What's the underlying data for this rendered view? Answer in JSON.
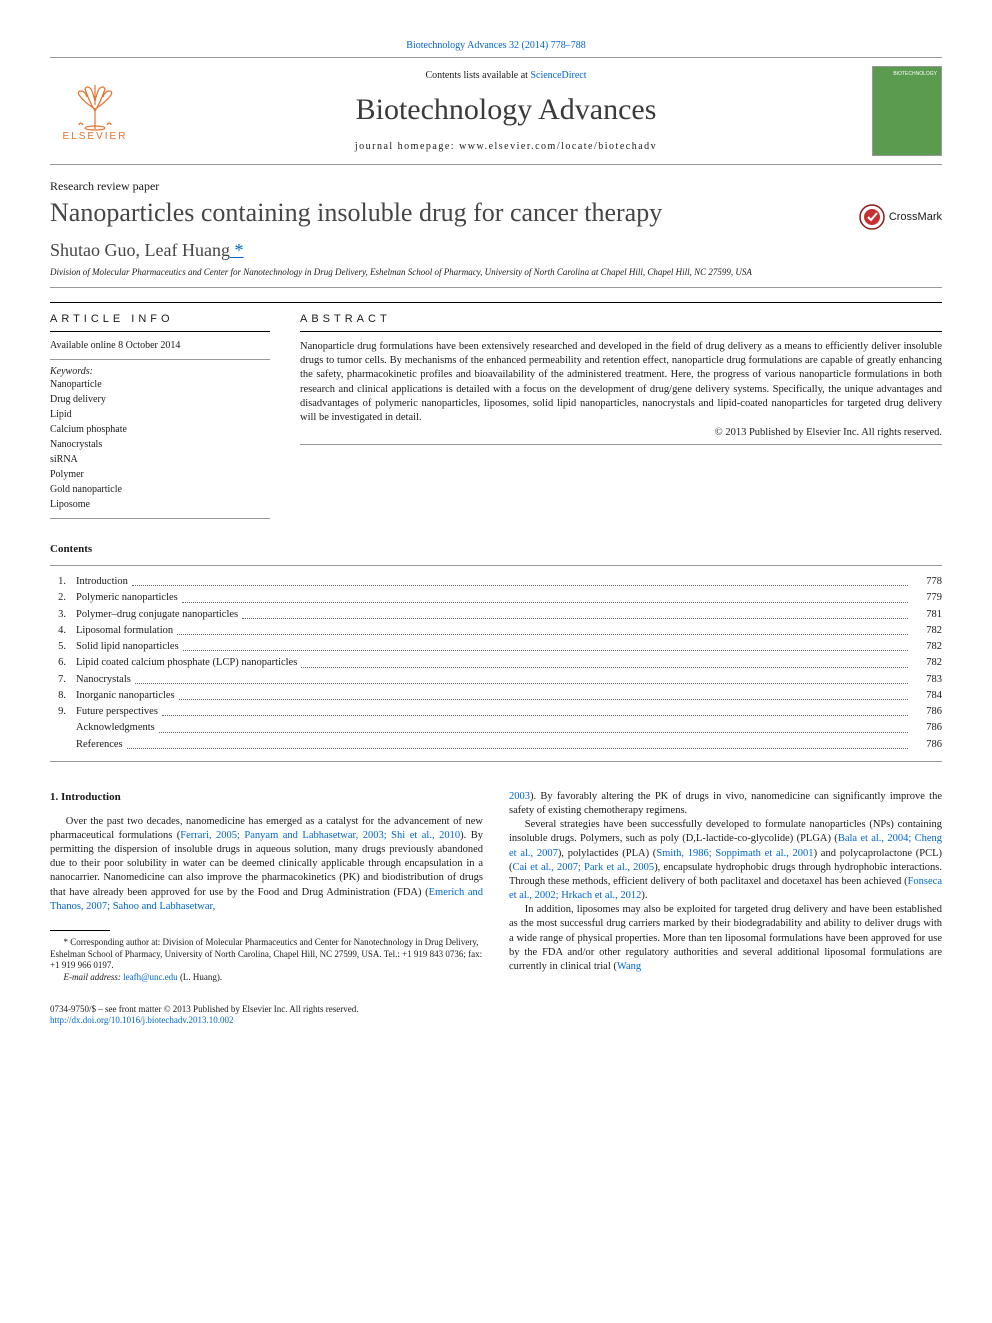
{
  "header": {
    "citation_link_text": "Biotechnology Advances 32 (2014) 778–788",
    "contents_prefix": "Contents lists available at ",
    "contents_link": "ScienceDirect",
    "journal_title": "Biotechnology Advances",
    "homepage_prefix": "journal homepage: ",
    "homepage_url": "www.elsevier.com/locate/biotechadv",
    "elsevier_label": "ELSEVIER",
    "cover_label": "BIOTECHNOLOGY"
  },
  "paper": {
    "type": "Research review paper",
    "title": "Nanoparticles containing insoluble drug for cancer therapy",
    "crossmark": "CrossMark",
    "authors_pre": "Shutao Guo, Leaf Huang",
    "author_star": " *",
    "affiliation": "Division of Molecular Pharmaceutics and Center for Nanotechnology in Drug Delivery, Eshelman School of Pharmacy, University of North Carolina at Chapel Hill, Chapel Hill, NC 27599, USA"
  },
  "meta": {
    "info_heading": "article info",
    "abstract_heading": "abstract",
    "available": "Available online 8 October 2014",
    "keywords_label": "Keywords:",
    "keywords": [
      "Nanoparticle",
      "Drug delivery",
      "Lipid",
      "Calcium phosphate",
      "Nanocrystals",
      "siRNA",
      "Polymer",
      "Gold nanoparticle",
      "Liposome"
    ],
    "abstract": "Nanoparticle drug formulations have been extensively researched and developed in the field of drug delivery as a means to efficiently deliver insoluble drugs to tumor cells. By mechanisms of the enhanced permeability and retention effect, nanoparticle drug formulations are capable of greatly enhancing the safety, pharmacokinetic profiles and bioavailability of the administered treatment. Here, the progress of various nanoparticle formulations in both research and clinical applications is detailed with a focus on the development of drug/gene delivery systems. Specifically, the unique advantages and disadvantages of polymeric nanoparticles, liposomes, solid lipid nanoparticles, nanocrystals and lipid-coated nanoparticles for targeted drug delivery will be investigated in detail.",
    "copyright": "© 2013 Published by Elsevier Inc. All rights reserved."
  },
  "contents": {
    "heading": "Contents",
    "items": [
      {
        "num": "1.",
        "title": "Introduction",
        "page": "778"
      },
      {
        "num": "2.",
        "title": "Polymeric nanoparticles",
        "page": "779"
      },
      {
        "num": "3.",
        "title": "Polymer–drug conjugate nanoparticles",
        "page": "781"
      },
      {
        "num": "4.",
        "title": "Liposomal formulation",
        "page": "782"
      },
      {
        "num": "5.",
        "title": "Solid lipid nanoparticles",
        "page": "782"
      },
      {
        "num": "6.",
        "title": "Lipid coated calcium phosphate (LCP) nanoparticles",
        "page": "782"
      },
      {
        "num": "7.",
        "title": "Nanocrystals",
        "page": "783"
      },
      {
        "num": "8.",
        "title": "Inorganic nanoparticles",
        "page": "784"
      },
      {
        "num": "9.",
        "title": "Future perspectives",
        "page": "786"
      },
      {
        "num": "",
        "title": "Acknowledgments",
        "page": "786"
      },
      {
        "num": "",
        "title": "References",
        "page": "786"
      }
    ]
  },
  "body": {
    "heading": "1. Introduction",
    "col1_p1_a": "Over the past two decades, nanomedicine has emerged as a catalyst for the advancement of new pharmaceutical formulations (",
    "col1_p1_link1": "Ferrari, 2005; Panyam and Labhasetwar, 2003; Shi et al., 2010",
    "col1_p1_b": "). By permitting the dispersion of insoluble drugs in aqueous solution, many drugs previously abandoned due to their poor solubility in water can be deemed clinically applicable through encapsulation in a nanocarrier. Nanomedicine can also improve the pharmacokinetics (PK) and biodistribution of drugs that have already been approved for use by the Food and Drug Administration (FDA) (",
    "col1_p1_link2": "Emerich and Thanos, 2007; Sahoo and Labhasetwar,",
    "col2_p0_link": "2003",
    "col2_p0_a": "). By favorably altering the PK of drugs in vivo, nanomedicine can significantly improve the safety of existing chemotherapy regimens.",
    "col2_p1_a": "Several strategies have been successfully developed to formulate nanoparticles (NPs) containing insoluble drugs. Polymers, such as poly (",
    "col2_p1_smallcaps": "D,L",
    "col2_p1_b": "-lactide-co-glycolide) (PLGA) (",
    "col2_p1_link1": "Bala et al., 2004; Cheng et al., 2007",
    "col2_p1_c": "), polylactides (PLA) (",
    "col2_p1_link2": "Smith, 1986; Soppimath et al., 2001",
    "col2_p1_d": ") and polycaprolactone (PCL) (",
    "col2_p1_link3": "Cai et al., 2007; Park et al., 2005",
    "col2_p1_e": "), encapsulate hydrophobic drugs through hydrophobic interactions. Through these methods, efficient delivery of both paclitaxel and docetaxel has been achieved (",
    "col2_p1_link4": "Fonseca et al., 2002; Hrkach et al., 2012",
    "col2_p1_f": ").",
    "col2_p2_a": "In addition, liposomes may also be exploited for targeted drug delivery and have been established as the most successful drug carriers marked by their biodegradability and ability to deliver drugs with a wide range of physical properties. More than ten liposomal formulations have been approved for use by the FDA and/or other regulatory authorities and several additional liposomal formulations are currently in clinical trial (",
    "col2_p2_link1": "Wang"
  },
  "footnote": {
    "corr_a": "* Corresponding author at: Division of Molecular Pharmaceutics and Center for Nanotechnology in Drug Delivery, Eshelman School of Pharmacy, University of North Carolina, Chapel Hill, NC 27599, USA. Tel.: +1 919 843 0736; fax: +1 919 966 0197.",
    "email_label": "E-mail address: ",
    "email": "leafh@unc.edu",
    "email_suffix": " (L. Huang)."
  },
  "footer": {
    "line1": "0734-9750/$ – see front matter © 2013 Published by Elsevier Inc. All rights reserved.",
    "doi": "http://dx.doi.org/10.1016/j.biotechadv.2013.10.002"
  },
  "colors": {
    "link": "#0066cc",
    "elsevier_orange": "#e8722f",
    "cover_green": "#5a9b4f"
  }
}
